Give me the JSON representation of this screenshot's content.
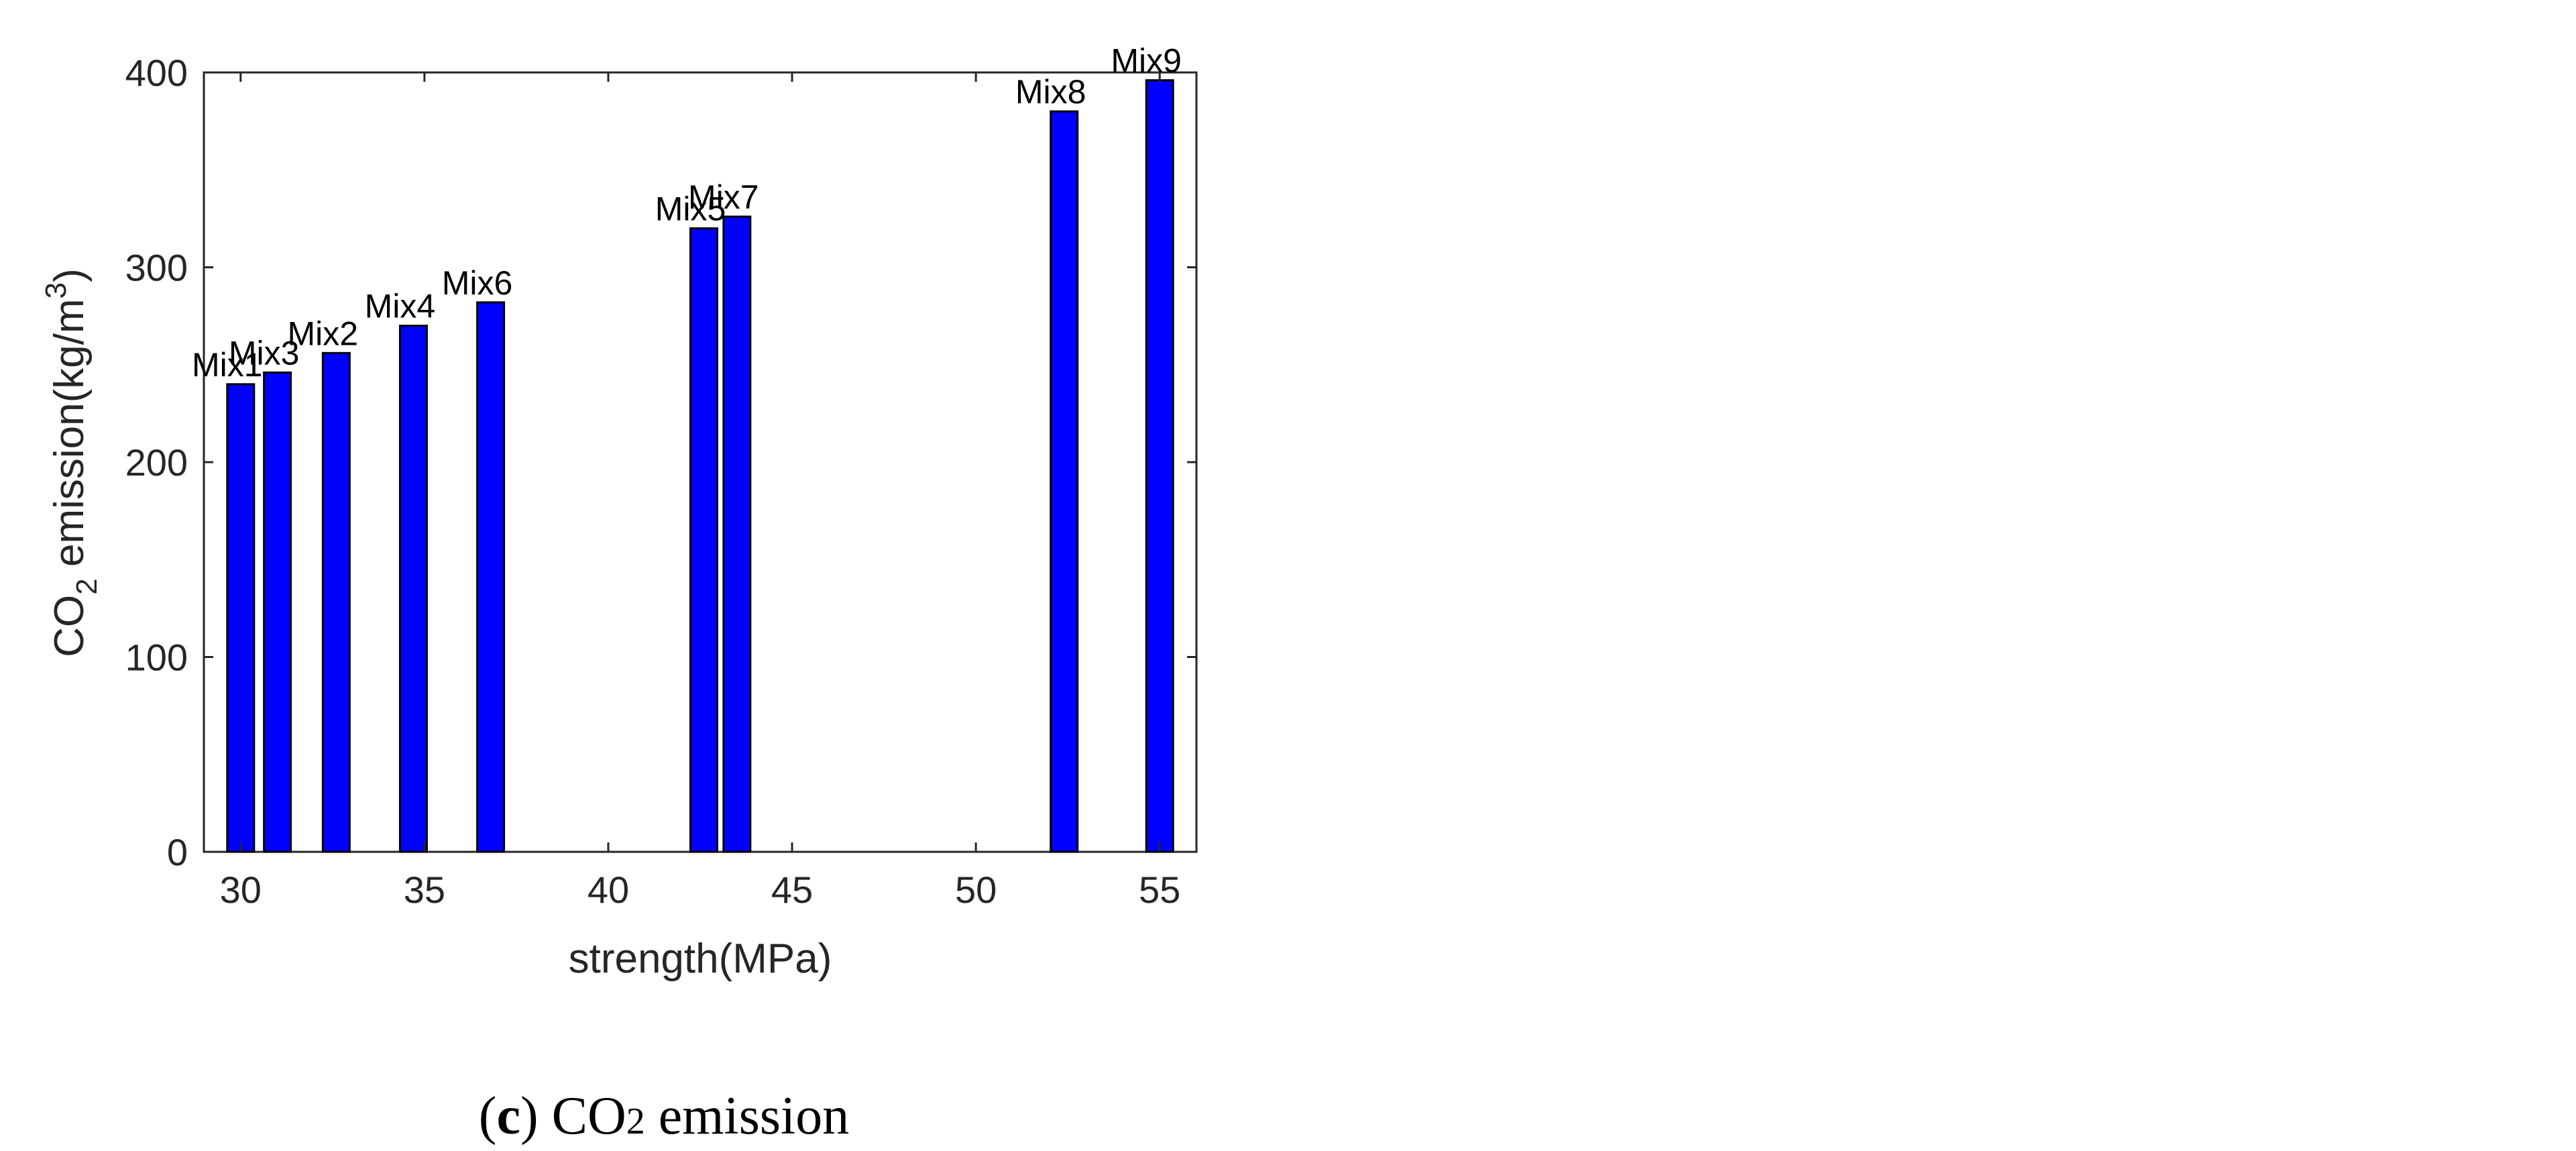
{
  "chart_data": {
    "type": "bar",
    "x": [
      30.0,
      31.0,
      32.6,
      34.7,
      36.8,
      42.6,
      43.5,
      52.4,
      55.0
    ],
    "values": [
      240,
      246,
      256,
      270,
      282,
      320,
      326,
      380,
      396
    ],
    "bar_labels": [
      "Mix1",
      "Mix3",
      "Mix2",
      "Mix4",
      "Mix6",
      "Mix5",
      "Mix7",
      "Mix8",
      "Mix9"
    ],
    "xlabel": "strength(MPa)",
    "ylabel_main": "CO",
    "ylabel_sub": "2",
    "ylabel_rest": " emission(kg/m",
    "ylabel_sup": "3",
    "ylabel_end": ")",
    "xlim": [
      29,
      56
    ],
    "ylim": [
      0,
      400
    ],
    "xticks": [
      30,
      35,
      40,
      45,
      50,
      55
    ],
    "yticks": [
      0,
      100,
      200,
      300,
      400
    ],
    "grid": false,
    "bar_color": "#0000FF",
    "bar_edge_color": "#000000"
  },
  "caption": {
    "open": "(",
    "letter": "c",
    "close": ")",
    "text": " CO",
    "sub": "2",
    "rest": " emission"
  }
}
